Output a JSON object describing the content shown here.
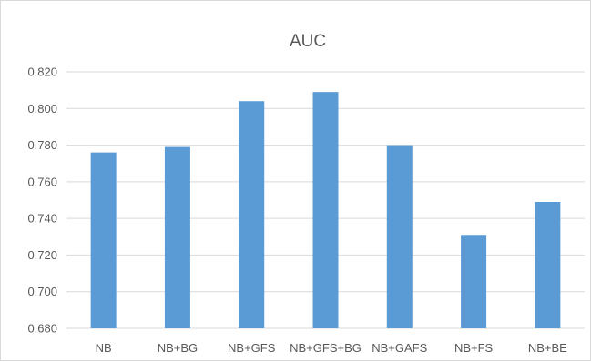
{
  "chart_data": {
    "type": "bar",
    "title": "AUC",
    "categories": [
      "NB",
      "NB+BG",
      "NB+GFS",
      "NB+GFS+BG",
      "NB+GAFS",
      "NB+FS",
      "NB+BE"
    ],
    "values": [
      0.776,
      0.779,
      0.804,
      0.809,
      0.78,
      0.731,
      0.749
    ],
    "ylim": [
      0.68,
      0.82
    ],
    "yticks": [
      "0.680",
      "0.700",
      "0.720",
      "0.740",
      "0.760",
      "0.780",
      "0.800",
      "0.820"
    ],
    "grid": true,
    "bar_color": "#5b9bd5",
    "grid_color": "#d9d9d9",
    "xlabel": "",
    "ylabel": ""
  }
}
